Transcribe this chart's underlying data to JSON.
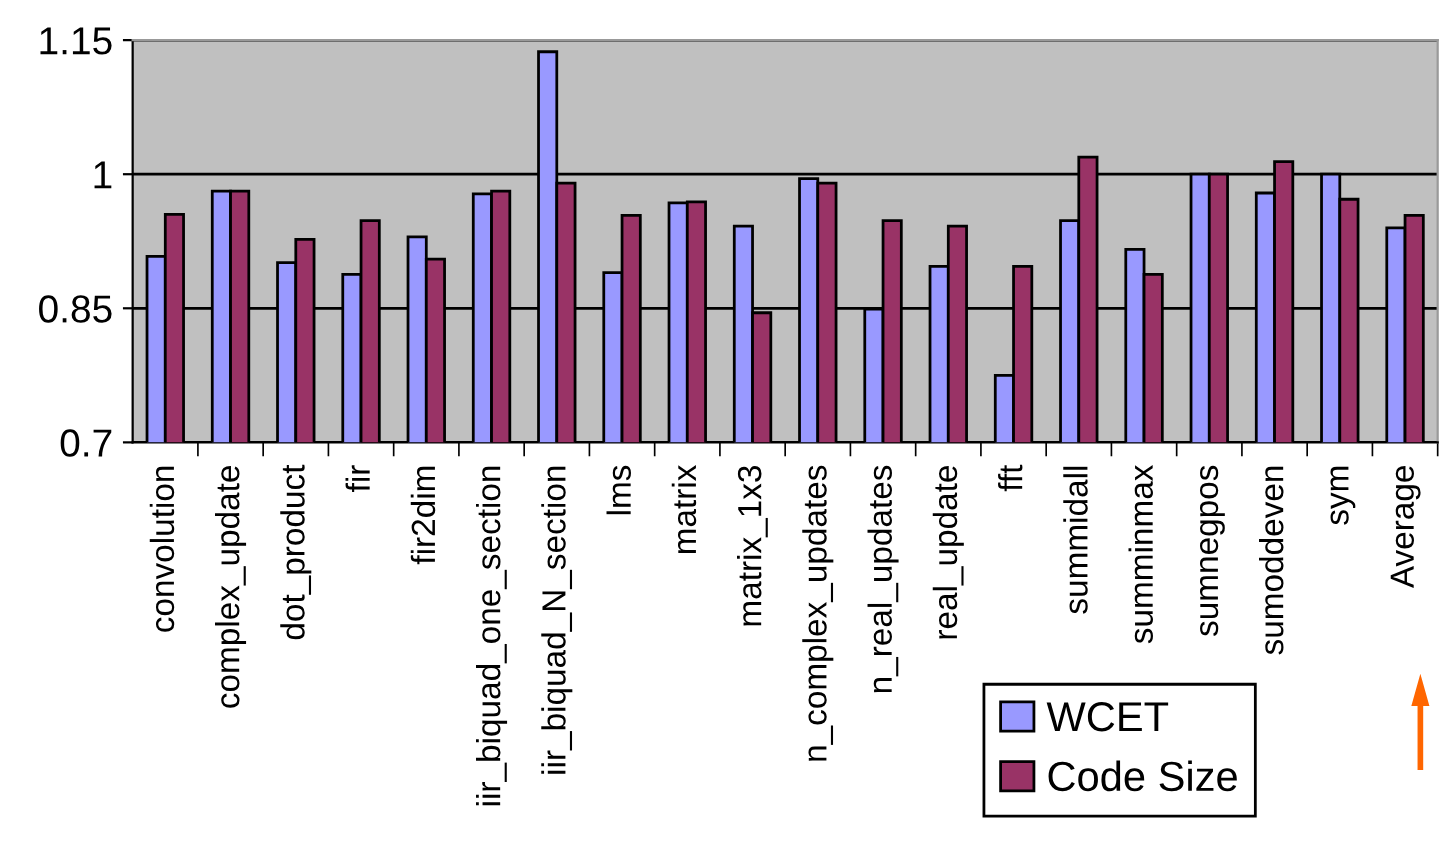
{
  "chart_data": {
    "type": "bar",
    "categories": [
      "convolution",
      "complex_update",
      "dot_product",
      "fir",
      "fir2dim",
      "iir_biquad_one_section",
      "iir_biquad_N_section",
      "lms",
      "matrix",
      "matrix_1x3",
      "n_complex_updates",
      "n_real_updates",
      "real_update",
      "fft",
      "summidall",
      "summinmax",
      "sumnegpos",
      "sumoddeven",
      "sym",
      "Average"
    ],
    "series": [
      {
        "name": "WCET",
        "color": "#9999ff",
        "values": [
          0.908,
          0.981,
          0.901,
          0.888,
          0.93,
          0.978,
          1.137,
          0.89,
          0.968,
          0.942,
          0.995,
          0.849,
          0.897,
          0.775,
          0.948,
          0.916,
          1.0,
          0.979,
          1.0,
          0.94
        ]
      },
      {
        "name": "Code Size",
        "color": "#993366",
        "values": [
          0.955,
          0.981,
          0.927,
          0.948,
          0.905,
          0.981,
          0.99,
          0.954,
          0.969,
          0.845,
          0.99,
          0.948,
          0.942,
          0.897,
          1.019,
          0.888,
          1.0,
          1.014,
          0.972,
          0.954
        ]
      }
    ],
    "ylim": [
      0.7,
      1.15
    ],
    "yticks": [
      0.7,
      0.85,
      1,
      1.15
    ],
    "grid": "y",
    "legend": "bottom right"
  }
}
